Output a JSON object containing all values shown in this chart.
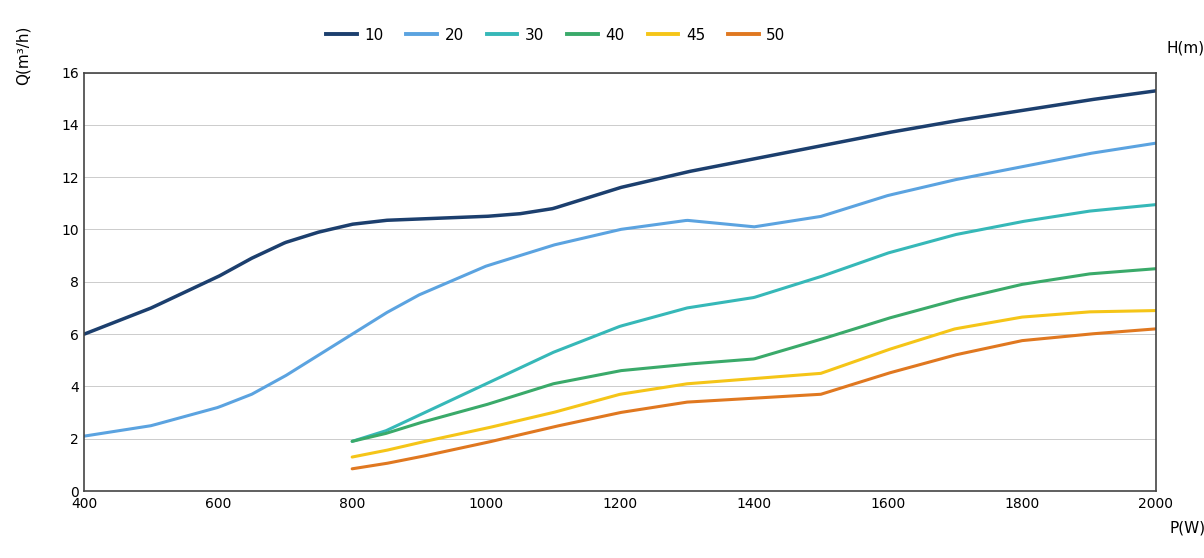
{
  "xlabel": "P(W)",
  "ylabel": "Q(m³/h)",
  "ylabel2": "H(m)",
  "xlim": [
    400,
    2000
  ],
  "ylim": [
    0,
    16
  ],
  "xticks": [
    400,
    600,
    800,
    1000,
    1200,
    1400,
    1600,
    1800,
    2000
  ],
  "yticks": [
    0,
    2,
    4,
    6,
    8,
    10,
    12,
    14,
    16
  ],
  "background_color": "#ffffff",
  "plot_bg_color": "#ffffff",
  "grid_color": "#cccccc",
  "series": [
    {
      "label": "10",
      "color": "#1c3f6e",
      "linewidth": 2.5,
      "x": [
        400,
        500,
        600,
        650,
        700,
        750,
        800,
        850,
        900,
        950,
        1000,
        1050,
        1100,
        1200,
        1300,
        1400,
        1500,
        1600,
        1700,
        1800,
        1900,
        2000
      ],
      "y": [
        6.0,
        7.0,
        8.2,
        8.9,
        9.5,
        9.9,
        10.2,
        10.35,
        10.4,
        10.45,
        10.5,
        10.6,
        10.8,
        11.6,
        12.2,
        12.7,
        13.2,
        13.7,
        14.15,
        14.55,
        14.95,
        15.3
      ]
    },
    {
      "label": "20",
      "color": "#5ba3e0",
      "linewidth": 2.2,
      "x": [
        400,
        500,
        600,
        650,
        700,
        750,
        800,
        850,
        900,
        1000,
        1100,
        1200,
        1300,
        1400,
        1500,
        1600,
        1700,
        1800,
        1900,
        2000
      ],
      "y": [
        2.1,
        2.5,
        3.2,
        3.7,
        4.4,
        5.2,
        6.0,
        6.8,
        7.5,
        8.6,
        9.4,
        10.0,
        10.35,
        10.1,
        10.5,
        11.3,
        11.9,
        12.4,
        12.9,
        13.3
      ]
    },
    {
      "label": "30",
      "color": "#36b8b8",
      "linewidth": 2.2,
      "x": [
        800,
        850,
        900,
        950,
        1000,
        1100,
        1200,
        1300,
        1400,
        1500,
        1600,
        1700,
        1800,
        1900,
        2000
      ],
      "y": [
        1.9,
        2.3,
        2.9,
        3.5,
        4.1,
        5.3,
        6.3,
        7.0,
        7.4,
        8.2,
        9.1,
        9.8,
        10.3,
        10.7,
        10.95
      ]
    },
    {
      "label": "40",
      "color": "#3aaa6a",
      "linewidth": 2.2,
      "x": [
        800,
        850,
        900,
        1000,
        1100,
        1200,
        1300,
        1400,
        1500,
        1600,
        1700,
        1800,
        1900,
        2000
      ],
      "y": [
        1.9,
        2.2,
        2.6,
        3.3,
        4.1,
        4.6,
        4.85,
        5.05,
        5.8,
        6.6,
        7.3,
        7.9,
        8.3,
        8.5
      ]
    },
    {
      "label": "45",
      "color": "#f5c518",
      "linewidth": 2.2,
      "x": [
        800,
        850,
        900,
        1000,
        1100,
        1200,
        1300,
        1400,
        1500,
        1600,
        1700,
        1800,
        1900,
        2000
      ],
      "y": [
        1.3,
        1.55,
        1.85,
        2.4,
        3.0,
        3.7,
        4.1,
        4.3,
        4.5,
        5.4,
        6.2,
        6.65,
        6.85,
        6.9
      ]
    },
    {
      "label": "50",
      "color": "#e07820",
      "linewidth": 2.2,
      "x": [
        800,
        850,
        900,
        1000,
        1100,
        1200,
        1300,
        1400,
        1500,
        1600,
        1700,
        1800,
        1900,
        2000
      ],
      "y": [
        0.85,
        1.05,
        1.3,
        1.85,
        2.45,
        3.0,
        3.4,
        3.55,
        3.7,
        4.5,
        5.2,
        5.75,
        6.0,
        6.2
      ]
    }
  ]
}
